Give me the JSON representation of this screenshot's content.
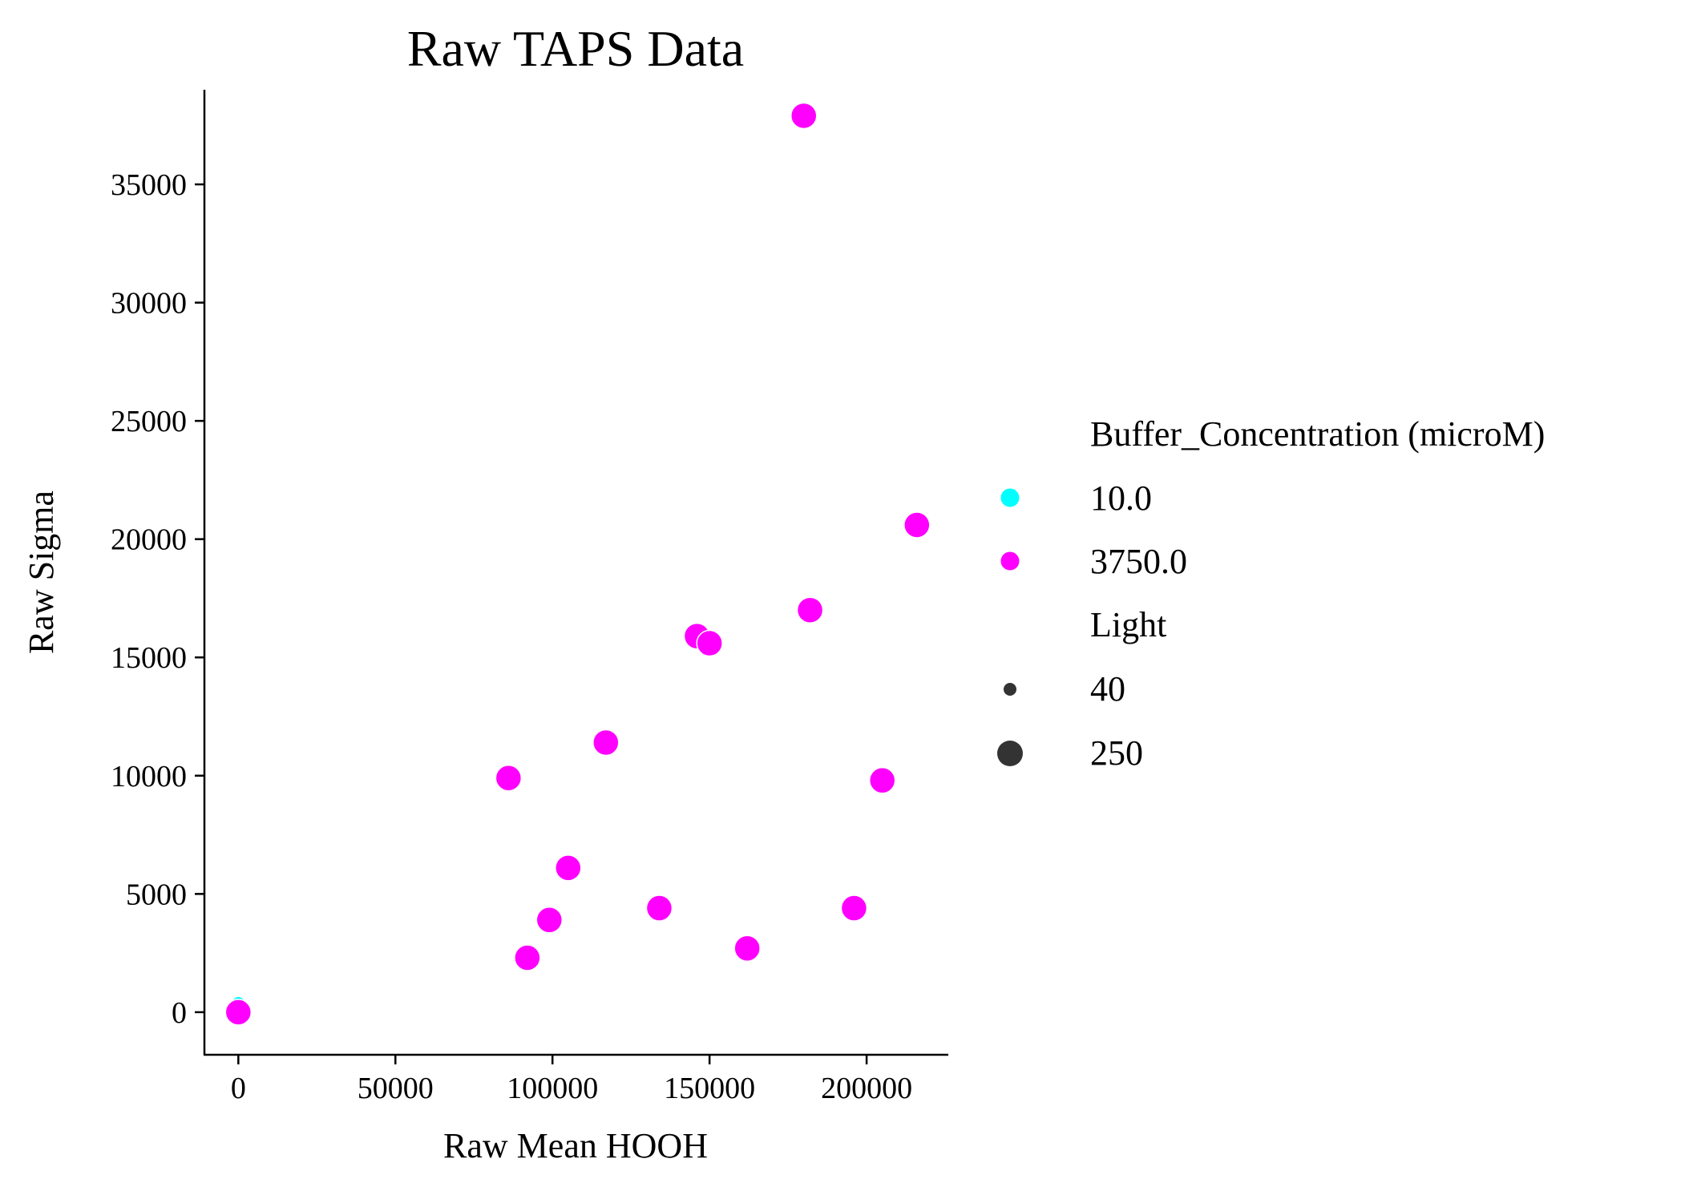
{
  "chart_data": {
    "type": "scatter",
    "title": "Raw TAPS Data",
    "xlabel": "Raw Mean HOOH",
    "ylabel": "Raw Sigma",
    "xlim": [
      -10800,
      226000
    ],
    "ylim": [
      -1800,
      39000
    ],
    "xticks": [
      0,
      50000,
      100000,
      150000,
      200000
    ],
    "xtick_labels": [
      "0",
      "50000",
      "100000",
      "150000",
      "200000"
    ],
    "yticks": [
      0,
      5000,
      10000,
      15000,
      20000,
      25000,
      30000,
      35000
    ],
    "ytick_labels": [
      "0",
      "5000",
      "10000",
      "15000",
      "20000",
      "25000",
      "30000",
      "35000"
    ],
    "grid": false,
    "legend_position": "right",
    "hue": {
      "title": "Buffer_Concentration (microM)",
      "entries": [
        {
          "label": "10.0",
          "color": "#00ffff"
        },
        {
          "label": "3750.0",
          "color": "#ff00ff"
        }
      ]
    },
    "size": {
      "title": "Light",
      "entries": [
        {
          "label": "40",
          "value": 40
        },
        {
          "label": "250",
          "value": 250
        }
      ]
    },
    "series": [
      {
        "name": "10.0",
        "color": "#00ffff",
        "points": [
          {
            "x": 0,
            "y": 400,
            "light": 40
          }
        ]
      },
      {
        "name": "3750.0",
        "color": "#ff00ff",
        "points": [
          {
            "x": 0,
            "y": 0,
            "light": 250
          },
          {
            "x": 180000,
            "y": 37900,
            "light": 250
          },
          {
            "x": 216000,
            "y": 20600,
            "light": 250
          },
          {
            "x": 182000,
            "y": 17000,
            "light": 250
          },
          {
            "x": 146000,
            "y": 15900,
            "light": 250
          },
          {
            "x": 150000,
            "y": 15600,
            "light": 250
          },
          {
            "x": 117000,
            "y": 11400,
            "light": 250
          },
          {
            "x": 86000,
            "y": 9900,
            "light": 250
          },
          {
            "x": 205000,
            "y": 9800,
            "light": 250
          },
          {
            "x": 105000,
            "y": 6100,
            "light": 250
          },
          {
            "x": 134000,
            "y": 4400,
            "light": 250
          },
          {
            "x": 196000,
            "y": 4400,
            "light": 250
          },
          {
            "x": 99000,
            "y": 3900,
            "light": 250
          },
          {
            "x": 162000,
            "y": 2700,
            "light": 250
          },
          {
            "x": 92000,
            "y": 2300,
            "light": 250
          }
        ]
      }
    ]
  }
}
